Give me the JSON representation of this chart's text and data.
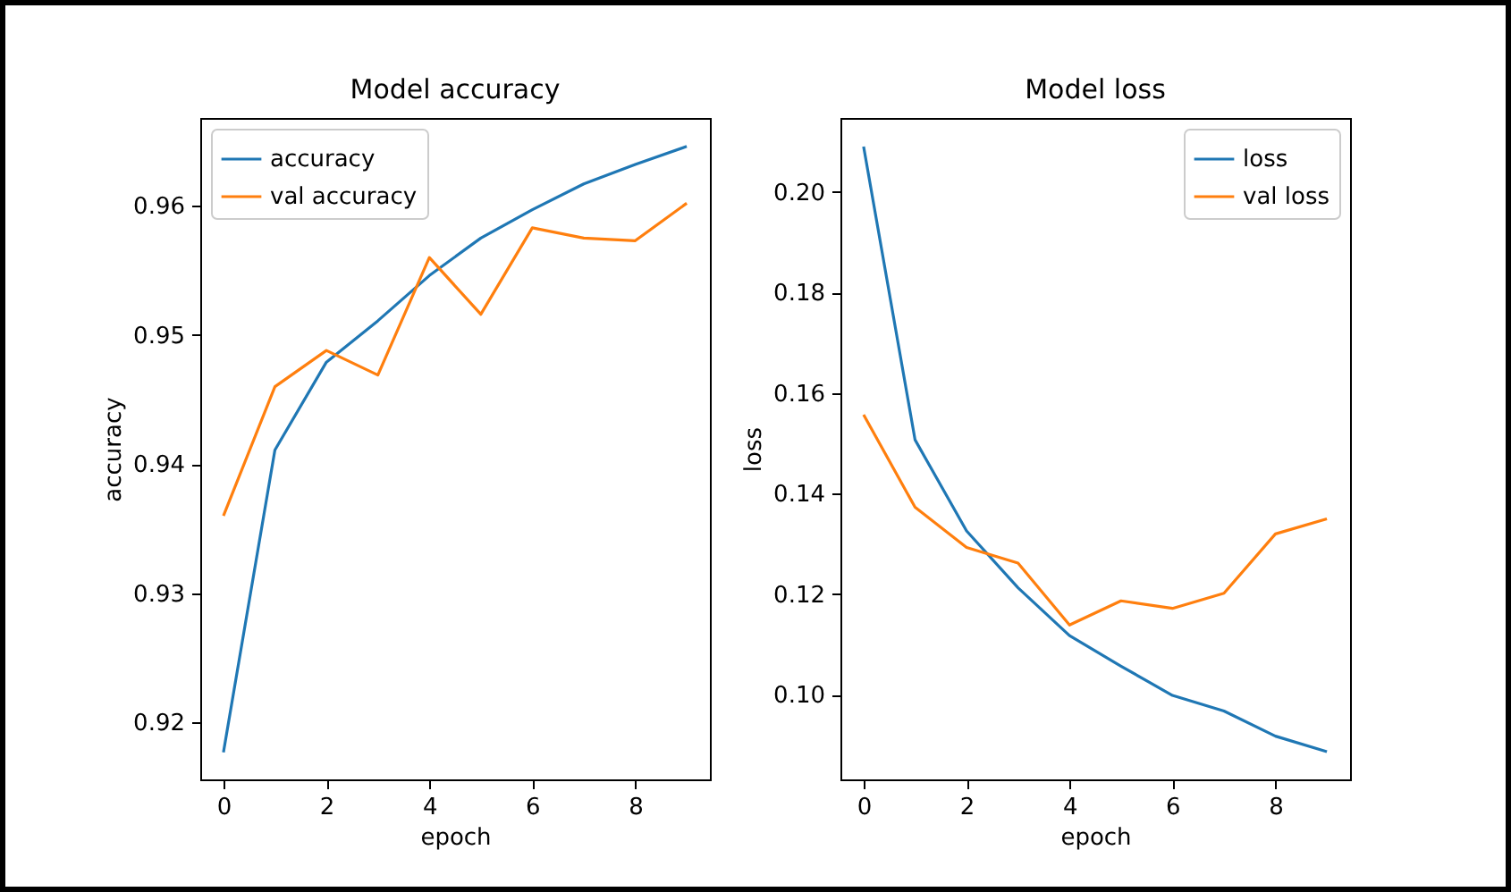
{
  "chart_data": [
    {
      "type": "line",
      "title": "Model accuracy",
      "xlabel": "epoch",
      "ylabel": "accuracy",
      "x": [
        0,
        1,
        2,
        3,
        4,
        5,
        6,
        7,
        8,
        9
      ],
      "series": [
        {
          "name": "accuracy",
          "color": "#1f77b4",
          "values": [
            0.9177,
            0.9411,
            0.9479,
            0.9511,
            0.9546,
            0.9575,
            0.9597,
            0.9617,
            0.9632,
            0.9646
          ]
        },
        {
          "name": "val accuracy",
          "color": "#ff7f0e",
          "values": [
            0.936,
            0.946,
            0.9488,
            0.9469,
            0.956,
            0.9516,
            0.9583,
            0.9575,
            0.9573,
            0.9602
          ]
        }
      ],
      "xlim": [
        -0.45,
        9.45
      ],
      "xticks": [
        0,
        2,
        4,
        6,
        8
      ],
      "ylim": [
        0.9156,
        0.9668
      ],
      "yticks": [
        0.92,
        0.93,
        0.94,
        0.95,
        0.96
      ],
      "legend": "top left"
    },
    {
      "type": "line",
      "title": "Model loss",
      "xlabel": "epoch",
      "ylabel": "loss",
      "x": [
        0,
        1,
        2,
        3,
        4,
        5,
        6,
        7,
        8,
        9
      ],
      "series": [
        {
          "name": "loss",
          "color": "#1f77b4",
          "values": [
            0.209,
            0.1507,
            0.1326,
            0.1213,
            0.1118,
            0.1057,
            0.0999,
            0.0968,
            0.0918,
            0.0887
          ]
        },
        {
          "name": "val loss",
          "color": "#ff7f0e",
          "values": [
            0.1557,
            0.1373,
            0.1293,
            0.1262,
            0.1139,
            0.1187,
            0.1172,
            0.1202,
            0.132,
            0.135
          ]
        }
      ],
      "xlim": [
        -0.45,
        9.45
      ],
      "xticks": [
        0,
        2,
        4,
        6,
        8
      ],
      "ylim": [
        0.0832,
        0.2147
      ],
      "yticks": [
        {
          "value": 0.1,
          "label": "0.10"
        },
        0.12,
        0.14,
        0.16,
        0.18,
        {
          "value": 0.2,
          "label": "0.20"
        }
      ],
      "legend": "top right"
    }
  ]
}
